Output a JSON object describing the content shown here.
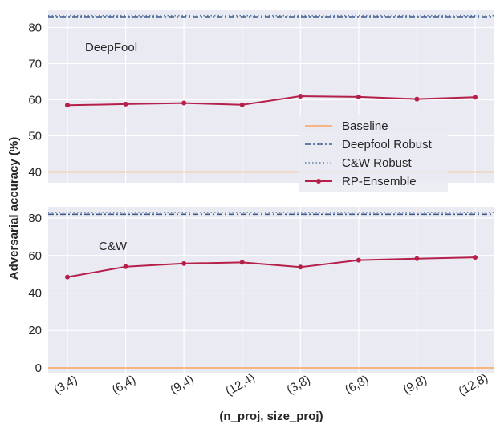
{
  "chart_data": {
    "type": "line",
    "ylabel": "Adversarial accuracy (%)",
    "xlabel": "(n_proj, size_proj)",
    "categories": [
      "(3,4)",
      "(6,4)",
      "(9,4)",
      "(12,4)",
      "(3,8)",
      "(6,8)",
      "(9,8)",
      "(12,8)"
    ],
    "grid": true,
    "legend": {
      "placement": "right",
      "entries": [
        "Baseline",
        "Deepfool Robust",
        "C&W Robust",
        "RP-Ensemble"
      ]
    },
    "colors": {
      "baseline": "#f7a35c",
      "deepfool_robust": "#3d5a8a",
      "cw_robust": "#5a7fa8",
      "rp_ensemble": "#b5204a",
      "panel_bg": "#eaeaf2",
      "grid": "#ffffff"
    },
    "panels": [
      {
        "annotation": "DeepFool",
        "ylim": [
          37,
          85
        ],
        "yticks": [
          40,
          50,
          60,
          70,
          80
        ],
        "series": [
          {
            "name": "Baseline",
            "values": [
              40,
              40,
              40,
              40,
              40,
              40,
              40,
              40
            ]
          },
          {
            "name": "Deepfool Robust",
            "values": [
              83,
              83,
              83,
              83,
              83,
              83,
              83,
              83
            ]
          },
          {
            "name": "C&W Robust",
            "values": [
              83.3,
              83.3,
              83.3,
              83.3,
              83.3,
              83.3,
              83.3,
              83.3
            ]
          },
          {
            "name": "RP-Ensemble",
            "values": [
              58.5,
              58.8,
              59.1,
              58.6,
              61.0,
              60.8,
              60.2,
              60.7
            ]
          }
        ]
      },
      {
        "annotation": "C&W",
        "ylim": [
          -3,
          86
        ],
        "yticks": [
          0,
          20,
          40,
          60,
          80
        ],
        "series": [
          {
            "name": "Baseline",
            "values": [
              0,
              0,
              0,
              0,
              0,
              0,
              0,
              0
            ]
          },
          {
            "name": "Deepfool Robust",
            "values": [
              82,
              82,
              82,
              82,
              82,
              82,
              82,
              82
            ]
          },
          {
            "name": "C&W Robust",
            "values": [
              83,
              83,
              83,
              83,
              83,
              83,
              83,
              83
            ]
          },
          {
            "name": "RP-Ensemble",
            "values": [
              48.5,
              54,
              55.7,
              56.3,
              53.8,
              57.5,
              58.3,
              59
            ]
          }
        ]
      }
    ]
  }
}
